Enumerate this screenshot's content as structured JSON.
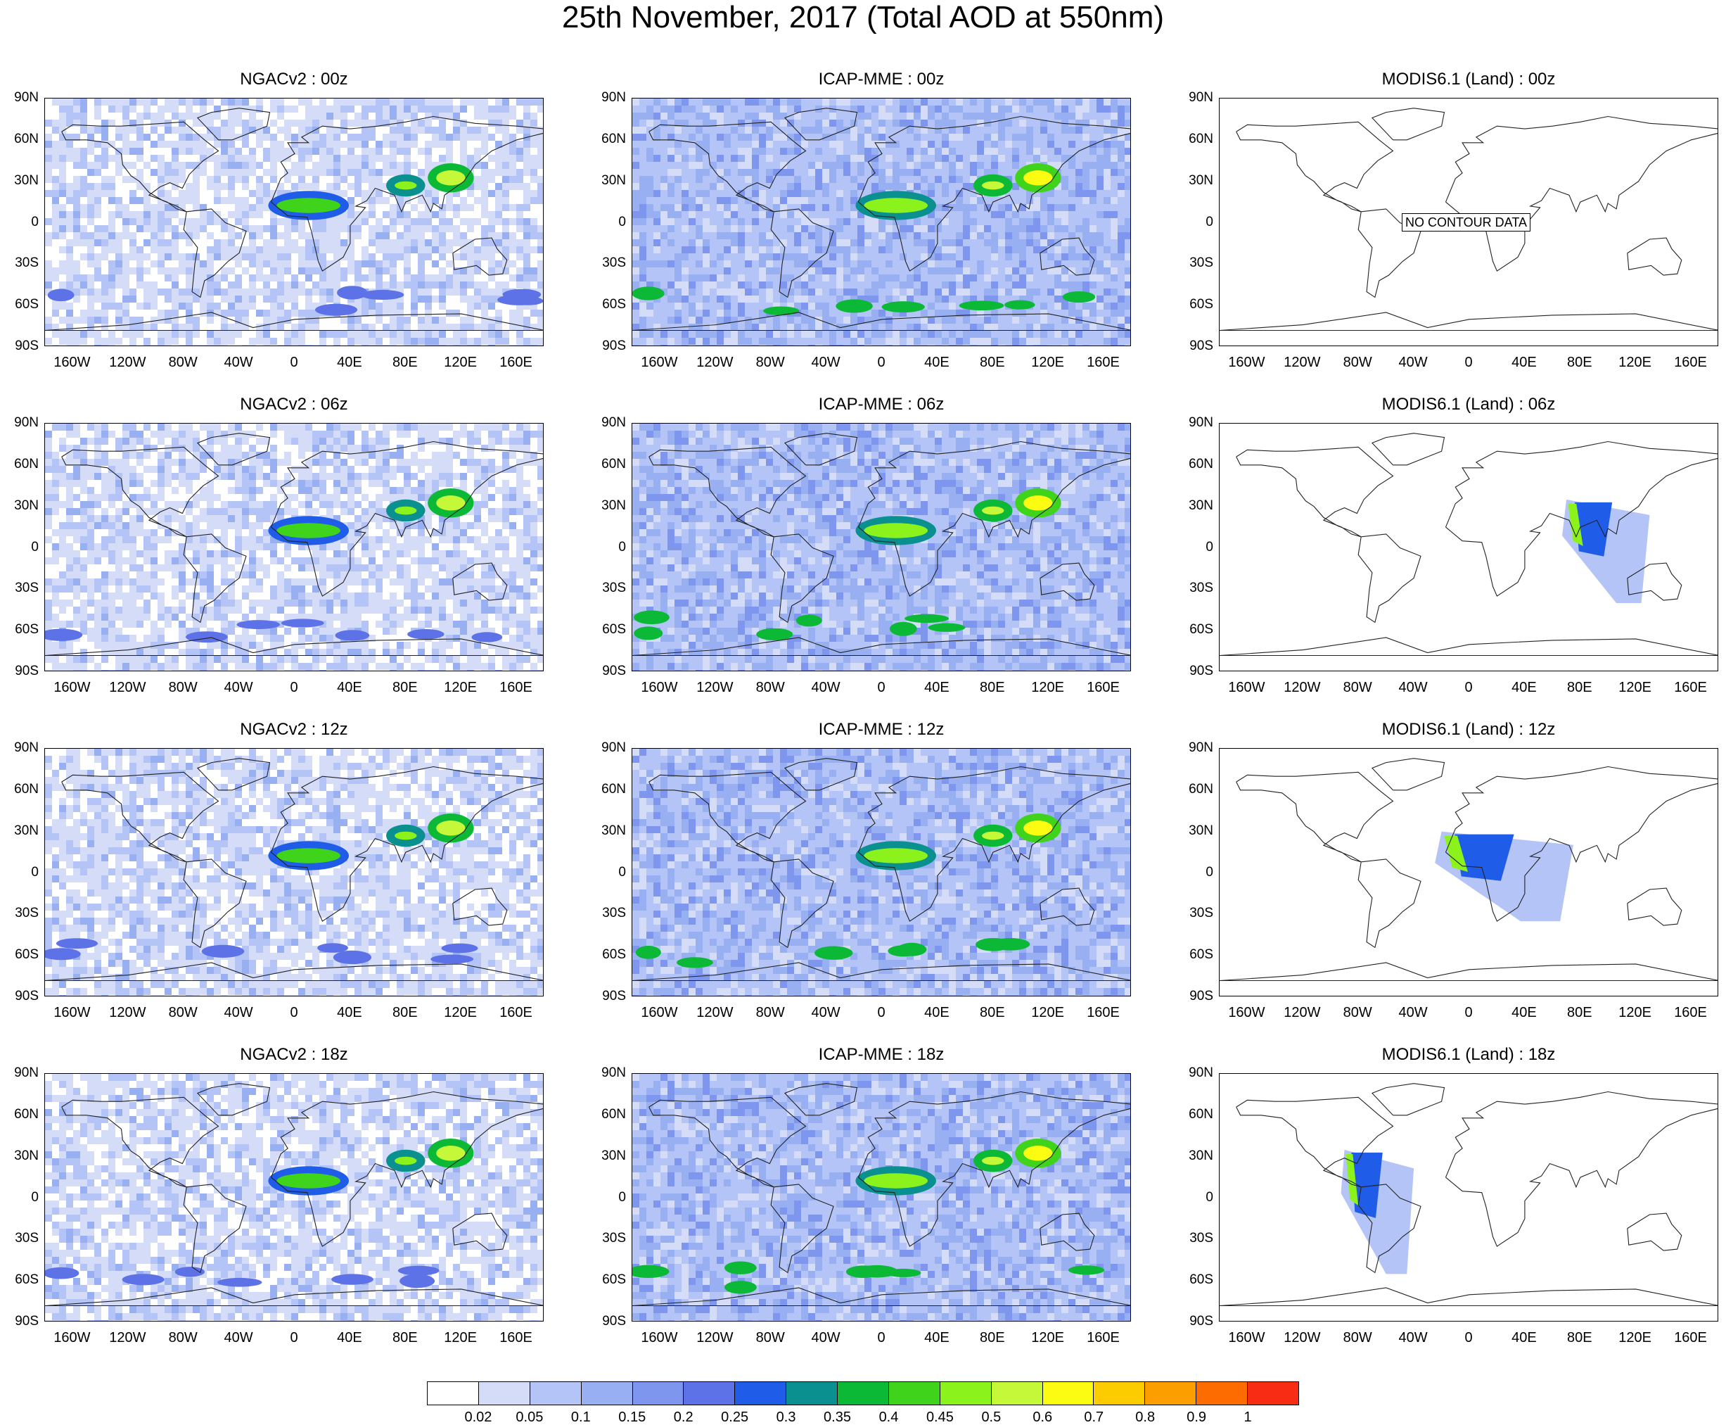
{
  "title": "25th November, 2017 (Total AOD at 550nm)",
  "lat_ticks": [
    "90N",
    "60N",
    "30N",
    "0",
    "30S",
    "60S",
    "90S"
  ],
  "lon_ticks": [
    "160W",
    "120W",
    "80W",
    "40W",
    "0",
    "40E",
    "80E",
    "120E",
    "160E"
  ],
  "colorbar": {
    "levels": [
      "0.02",
      "0.05",
      "0.1",
      "0.15",
      "0.2",
      "0.25",
      "0.3",
      "0.35",
      "0.4",
      "0.45",
      "0.5",
      "0.6",
      "0.7",
      "0.8",
      "0.9",
      "1"
    ],
    "colors": [
      "#ffffff",
      "#d4dcf8",
      "#b4c4f6",
      "#98b0f2",
      "#7f96ee",
      "#5e72e8",
      "#1f5de8",
      "#0b9090",
      "#0cb936",
      "#3fd31c",
      "#8cf21c",
      "#c6f83a",
      "#fbfc12",
      "#fccb00",
      "#fc9d00",
      "#fc6c00",
      "#f82c14"
    ]
  },
  "columns": [
    {
      "model": "NGACv2",
      "palette": [
        "#ffffff",
        "#d4dcf8",
        "#b4c4f6",
        "#98b0f2",
        "#7f96ee"
      ]
    },
    {
      "model": "ICAP-MME",
      "palette": [
        "#d4dcf8",
        "#b4c4f6",
        "#98b0f2",
        "#7f96ee",
        "#5e72e8"
      ]
    },
    {
      "model": "MODIS6.1 (Land)",
      "palette": [
        "#ffffff"
      ]
    }
  ],
  "rows": [
    {
      "time": "00z"
    },
    {
      "time": "06z"
    },
    {
      "time": "12z"
    },
    {
      "time": "18z"
    }
  ],
  "panels": [
    [
      {
        "title": "NGACv2 : 00z"
      },
      {
        "title": "ICAP-MME : 00z"
      },
      {
        "title": "MODIS6.1 (Land) : 00z",
        "no_data": "NO CONTOUR DATA"
      }
    ],
    [
      {
        "title": "NGACv2 : 06z"
      },
      {
        "title": "ICAP-MME : 06z"
      },
      {
        "title": "MODIS6.1 (Land) : 06z",
        "swath": {
          "region": "South Asia to Australia",
          "lon": [
            70,
            130
          ],
          "lat": [
            35,
            -40
          ]
        }
      }
    ],
    [
      {
        "title": "NGACv2 : 12z"
      },
      {
        "title": "ICAP-MME : 12z"
      },
      {
        "title": "MODIS6.1 (Land) : 12z",
        "swath": {
          "region": "Africa to Arabia",
          "lon": [
            -20,
            75
          ],
          "lat": [
            30,
            -35
          ]
        }
      }
    ],
    [
      {
        "title": "NGACv2 : 18z"
      },
      {
        "title": "ICAP-MME : 18z"
      },
      {
        "title": "MODIS6.1 (Land) : 18z",
        "swath": {
          "region": "South America",
          "lon": [
            -90,
            -40
          ],
          "lat": [
            35,
            -55
          ]
        }
      }
    ]
  ],
  "hotspots": [
    {
      "region": "Central Africa biomass burning",
      "lon": [
        -15,
        35
      ],
      "lat": [
        5,
        20
      ],
      "level": "0.45"
    },
    {
      "region": "East China",
      "lon": [
        100,
        125
      ],
      "lat": [
        25,
        40
      ],
      "level": "0.6"
    },
    {
      "region": "Northern India",
      "lon": [
        70,
        90
      ],
      "lat": [
        22,
        32
      ],
      "level": "0.5"
    },
    {
      "region": "Southern Ocean storm tracks",
      "lon": [
        -180,
        180
      ],
      "lat": [
        -65,
        -50
      ],
      "level": "0.35"
    }
  ]
}
